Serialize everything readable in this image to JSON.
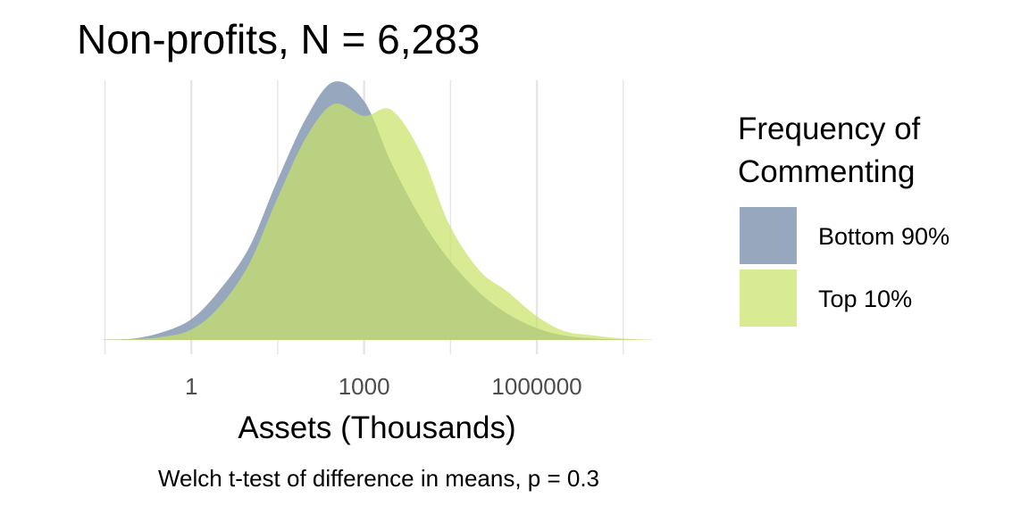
{
  "chart_data": {
    "type": "area",
    "title": "Non-profits, N = 6,283",
    "xlabel": "Assets (Thousands)",
    "ylabel": "",
    "x_scale": "log10",
    "xlim": [
      0.03,
      100000000
    ],
    "ylim": [
      0,
      0.175
    ],
    "x_ticks": [
      1,
      1000,
      1000000
    ],
    "x_tick_labels": [
      "1",
      "1000",
      "1000000"
    ],
    "grid": true,
    "caption": "Welch t-test of difference in means, p = 0.3",
    "legend": {
      "title": "Frequency of Commenting",
      "title_lines": [
        "Frequency of",
        "Commenting"
      ],
      "position": "right"
    },
    "x": [
      0.03,
      0.1,
      0.3,
      1,
      3,
      10,
      30,
      100,
      300,
      1000,
      3000,
      10000,
      30000,
      100000,
      300000,
      1000000,
      3000000,
      10000000,
      30000000,
      100000000
    ],
    "series": [
      {
        "name": "Bottom 90%",
        "color": "#91a3bb",
        "opacity": 0.95,
        "values": [
          0.0003,
          0.001,
          0.005,
          0.014,
          0.033,
          0.062,
          0.106,
          0.15,
          0.174,
          0.161,
          0.119,
          0.081,
          0.054,
          0.032,
          0.018,
          0.008,
          0.003,
          0.001,
          0.0004,
          0.0001
        ]
      },
      {
        "name": "Top 10%",
        "color": "#c8e265",
        "opacity": 0.7,
        "values": [
          0.0002,
          0.0007,
          0.002,
          0.007,
          0.022,
          0.051,
          0.094,
          0.137,
          0.159,
          0.151,
          0.155,
          0.125,
          0.078,
          0.047,
          0.033,
          0.016,
          0.006,
          0.003,
          0.001,
          0.0002
        ]
      }
    ]
  }
}
